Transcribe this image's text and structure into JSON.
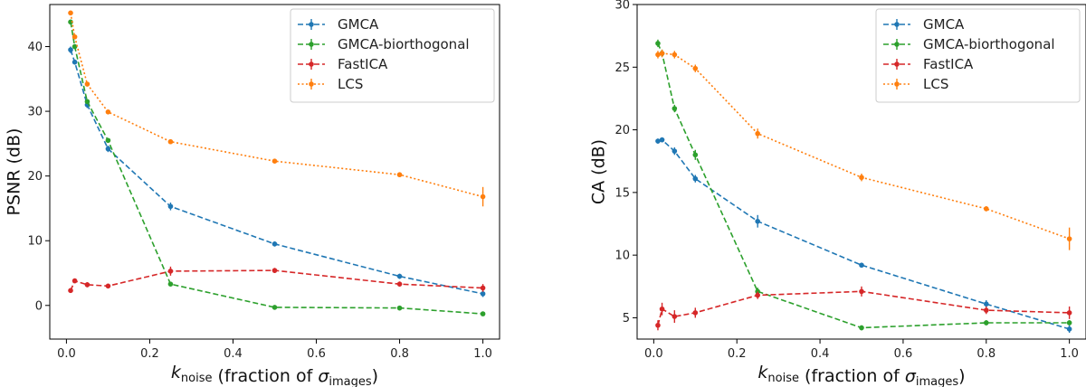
{
  "colors": {
    "GMCA": "#1f77b4",
    "GMCA-biorthogonal": "#2ca02c",
    "FastICA": "#d62728",
    "LCS": "#ff7f0e"
  },
  "chart_data": [
    {
      "type": "line",
      "ylabel": "PSNR (dB)",
      "xlabel": "k_noise (fraction of σ_images)",
      "xlabel_parts": {
        "k": "k",
        "k_sub": "noise",
        "rest": " (fraction of ",
        "sigma": "σ",
        "sigma_sub": "images",
        "close": ")"
      },
      "xlim": [
        -0.04,
        1.04
      ],
      "ylim": [
        -5.2,
        46.5
      ],
      "xticks": [
        0.0,
        0.2,
        0.4,
        0.6,
        0.8,
        1.0
      ],
      "xtick_labels": [
        "0.0",
        "0.2",
        "0.4",
        "0.6",
        "0.8",
        "1.0"
      ],
      "yticks": [
        0,
        10,
        20,
        30,
        40
      ],
      "ytick_labels": [
        "0",
        "10",
        "20",
        "30",
        "40"
      ],
      "legend_position": "top-right",
      "x": [
        0.01,
        0.02,
        0.05,
        0.1,
        0.25,
        0.5,
        0.8,
        1.0
      ],
      "series": [
        {
          "name": "GMCA",
          "style": "dashed",
          "values": [
            39.5,
            37.6,
            31.0,
            24.2,
            15.3,
            9.5,
            4.5,
            1.8
          ],
          "errors": [
            0.5,
            0.4,
            0.5,
            0.5,
            0.6,
            0.4,
            0.4,
            0.5
          ]
        },
        {
          "name": "GMCA-biorthogonal",
          "style": "dashed",
          "values": [
            43.8,
            40.0,
            31.5,
            25.5,
            3.3,
            -0.3,
            -0.4,
            -1.3
          ],
          "errors": [
            0.3,
            0.3,
            0.3,
            0.3,
            0.3,
            0.2,
            0.2,
            0.2
          ]
        },
        {
          "name": "FastICA",
          "style": "dashed",
          "values": [
            2.3,
            3.8,
            3.2,
            3.0,
            5.3,
            5.4,
            3.3,
            2.7
          ],
          "errors": [
            0.3,
            0.3,
            0.4,
            0.3,
            0.7,
            0.4,
            0.4,
            0.6
          ]
        },
        {
          "name": "LCS",
          "style": "dotted",
          "values": [
            45.2,
            41.5,
            34.2,
            29.9,
            25.3,
            22.3,
            20.2,
            16.8
          ],
          "errors": [
            0.3,
            0.3,
            0.3,
            0.3,
            0.3,
            0.3,
            0.3,
            1.5
          ]
        }
      ]
    },
    {
      "type": "line",
      "ylabel": "CA (dB)",
      "xlabel": "k_noise (fraction of σ_images)",
      "xlabel_parts": {
        "k": "k",
        "k_sub": "noise",
        "rest": " (fraction of ",
        "sigma": "σ",
        "sigma_sub": "images",
        "close": ")"
      },
      "xlim": [
        -0.04,
        1.04
      ],
      "ylim": [
        3.3,
        30.0
      ],
      "xticks": [
        0.0,
        0.2,
        0.4,
        0.6,
        0.8,
        1.0
      ],
      "xtick_labels": [
        "0.0",
        "0.2",
        "0.4",
        "0.6",
        "0.8",
        "1.0"
      ],
      "yticks": [
        5,
        10,
        15,
        20,
        25,
        30
      ],
      "ytick_labels": [
        "5",
        "10",
        "15",
        "20",
        "25",
        "30"
      ],
      "legend_position": "top-right",
      "x": [
        0.01,
        0.02,
        0.05,
        0.1,
        0.25,
        0.5,
        0.8,
        1.0
      ],
      "series": [
        {
          "name": "GMCA",
          "style": "dashed",
          "values": [
            19.1,
            19.2,
            18.3,
            16.1,
            12.7,
            9.2,
            6.1,
            4.1
          ],
          "errors": [
            0.2,
            0.2,
            0.3,
            0.3,
            0.5,
            0.2,
            0.3,
            0.3
          ]
        },
        {
          "name": "GMCA-biorthogonal",
          "style": "dashed",
          "values": [
            26.9,
            26.1,
            21.7,
            18.0,
            7.1,
            4.2,
            4.6,
            4.6
          ],
          "errors": [
            0.3,
            0.3,
            0.3,
            0.4,
            0.3,
            0.2,
            0.2,
            0.2
          ]
        },
        {
          "name": "FastICA",
          "style": "dashed",
          "values": [
            4.4,
            5.7,
            5.1,
            5.4,
            6.8,
            7.1,
            5.6,
            5.4
          ],
          "errors": [
            0.4,
            0.5,
            0.5,
            0.4,
            0.3,
            0.4,
            0.3,
            0.5
          ]
        },
        {
          "name": "LCS",
          "style": "dotted",
          "values": [
            26.0,
            26.1,
            26.0,
            24.9,
            19.7,
            16.2,
            13.7,
            11.3
          ],
          "errors": [
            0.3,
            0.3,
            0.3,
            0.3,
            0.4,
            0.3,
            0.2,
            0.9
          ]
        }
      ]
    }
  ]
}
